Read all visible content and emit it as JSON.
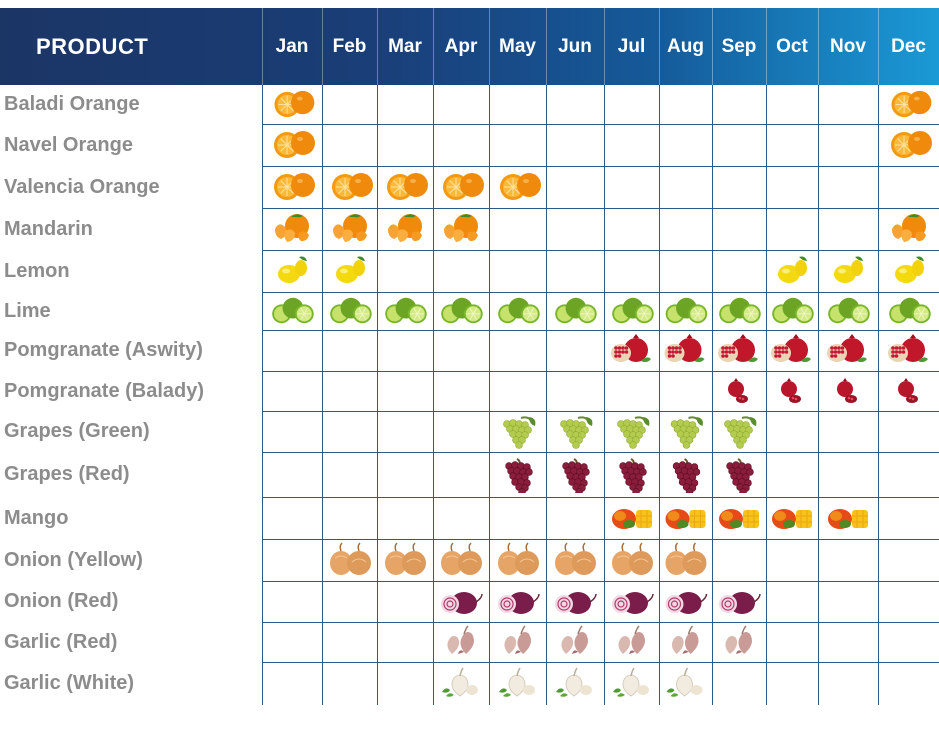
{
  "header": {
    "product_label": "PRODUCT",
    "months": [
      "Jan",
      "Feb",
      "Mar",
      "Apr",
      "May",
      "Jun",
      "Jul",
      "Aug",
      "Sep",
      "Oct",
      "Nov",
      "Dec"
    ]
  },
  "colors": {
    "header_start": "#1b3565",
    "header_end": "#1a9ad6",
    "grid_line": "#2b5a86",
    "product_text": "#8c8c8c",
    "header_text": "#ffffff"
  },
  "products": [
    {
      "name": "Baladi Orange",
      "icon": "orange-icon",
      "months": [
        1,
        12
      ]
    },
    {
      "name": "Navel Orange",
      "icon": "orange-icon",
      "months": [
        1,
        12
      ]
    },
    {
      "name": "Valencia Orange",
      "icon": "orange-icon",
      "months": [
        1,
        2,
        3,
        4,
        5
      ]
    },
    {
      "name": "Mandarin",
      "icon": "mandarin-icon",
      "months": [
        1,
        2,
        3,
        4,
        12
      ]
    },
    {
      "name": "Lemon",
      "icon": "lemon-icon",
      "months": [
        1,
        2,
        10,
        11,
        12
      ]
    },
    {
      "name": "Lime",
      "icon": "lime-icon",
      "months": [
        1,
        2,
        3,
        4,
        5,
        6,
        7,
        8,
        9,
        10,
        11,
        12
      ]
    },
    {
      "name": "Pomgranate (Aswity)",
      "icon": "pomegranate-icon",
      "months": [
        7,
        8,
        9,
        10,
        11,
        12
      ]
    },
    {
      "name": "Pomgranate (Balady)",
      "icon": "pomegranate-small-icon",
      "months": [
        9,
        10,
        11,
        12
      ]
    },
    {
      "name": "Grapes (Green)",
      "icon": "green-grapes-icon",
      "months": [
        5,
        6,
        7,
        8,
        9
      ]
    },
    {
      "name": "Grapes (Red)",
      "icon": "red-grapes-icon",
      "months": [
        5,
        6,
        7,
        8,
        9
      ]
    },
    {
      "name": "Mango",
      "icon": "mango-icon",
      "months": [
        7,
        8,
        9,
        10,
        11
      ]
    },
    {
      "name": "Onion (Yellow)",
      "icon": "yellow-onion-icon",
      "months": [
        2,
        3,
        4,
        5,
        6,
        7,
        8
      ]
    },
    {
      "name": "Onion (Red)",
      "icon": "red-onion-icon",
      "months": [
        4,
        5,
        6,
        7,
        8,
        9
      ]
    },
    {
      "name": "Garlic (Red)",
      "icon": "red-garlic-icon",
      "months": [
        4,
        5,
        6,
        7,
        8,
        9
      ]
    },
    {
      "name": "Garlic (White)",
      "icon": "white-garlic-icon",
      "months": [
        4,
        5,
        6,
        7,
        8
      ]
    }
  ]
}
